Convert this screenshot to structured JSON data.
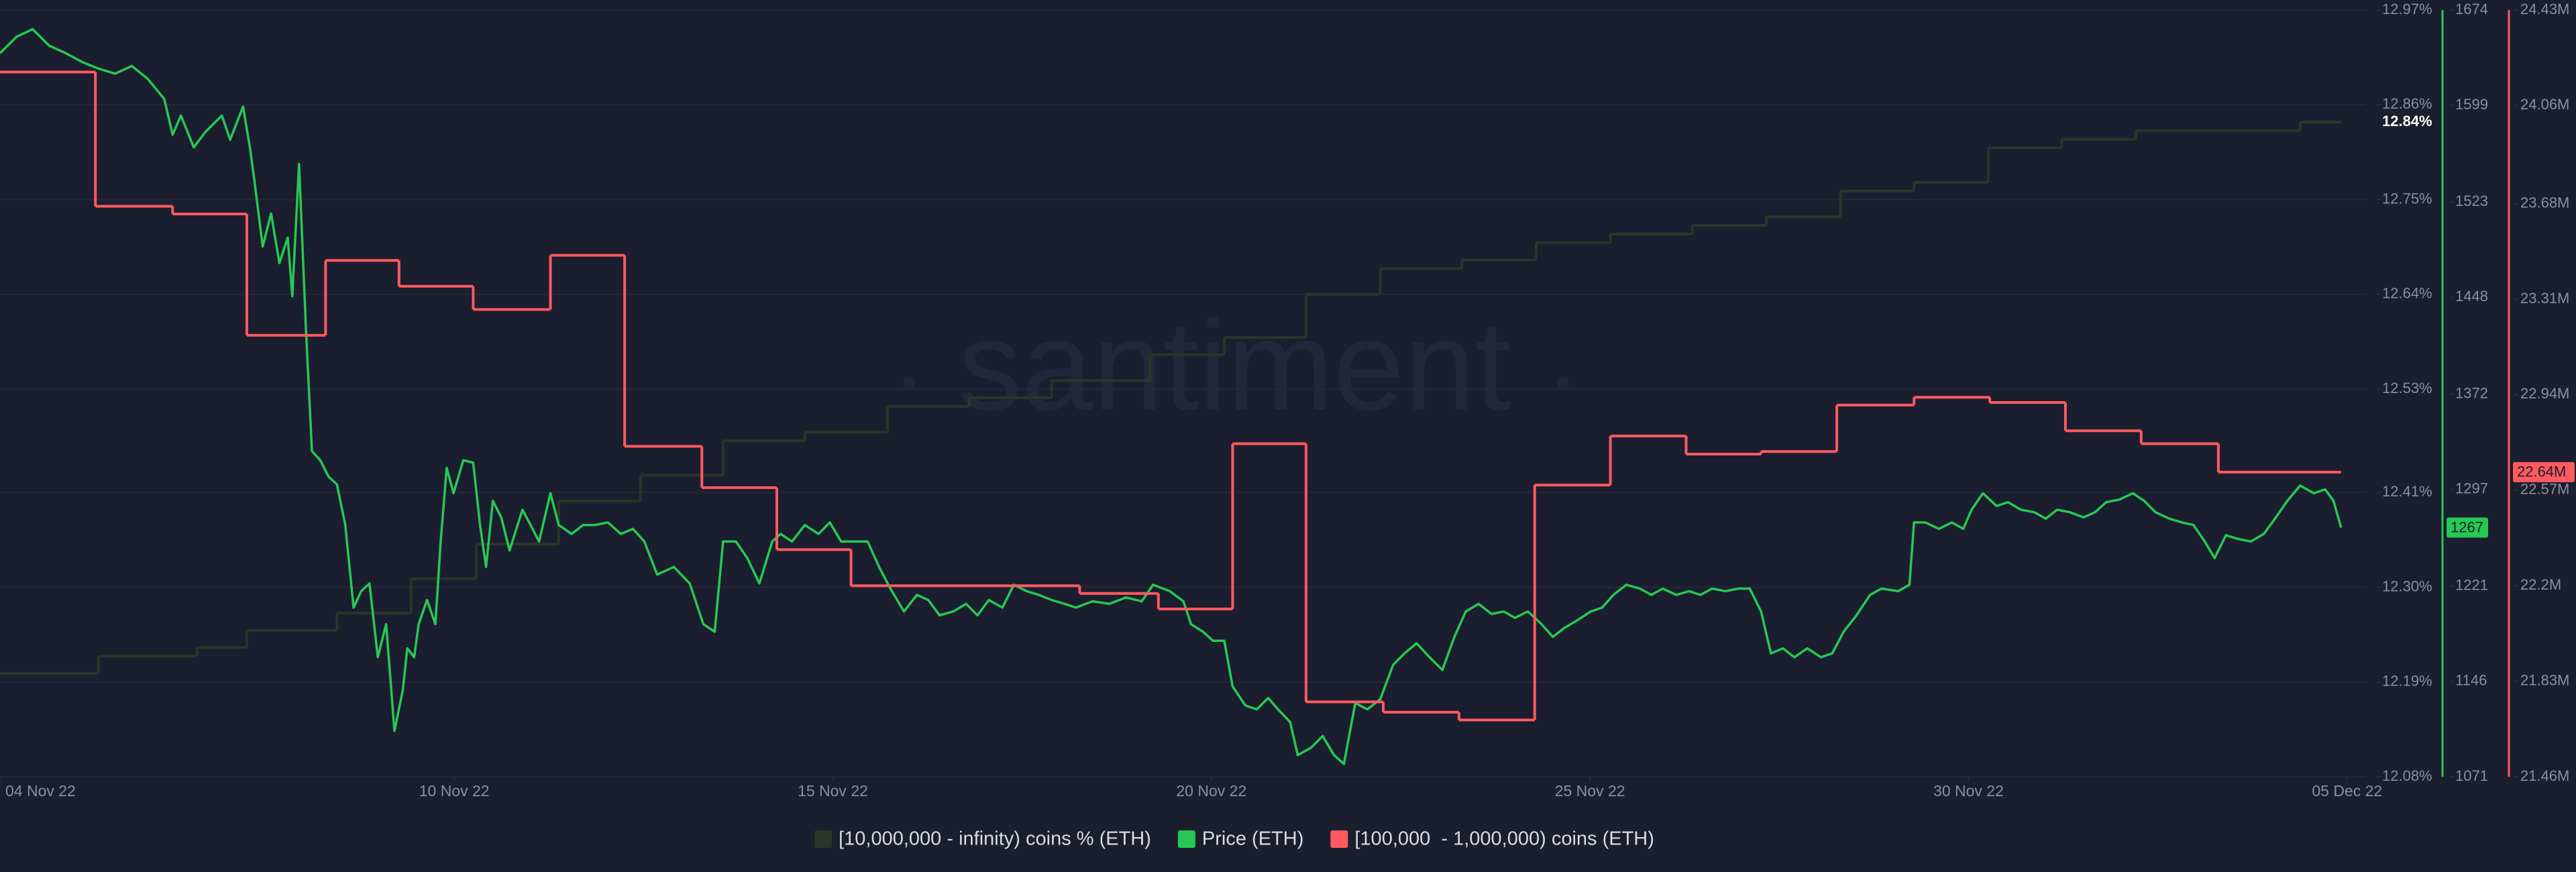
{
  "chart_data": {
    "type": "line",
    "watermark": "santiment",
    "xlim": [
      0,
      31.25
    ],
    "xticks": [
      {
        "value": 0,
        "label": "04 Nov 22"
      },
      {
        "value": 6,
        "label": "10 Nov 22"
      },
      {
        "value": 11,
        "label": "15 Nov 22"
      },
      {
        "value": 16,
        "label": "20 Nov 22"
      },
      {
        "value": 21,
        "label": "25 Nov 22"
      },
      {
        "value": 26,
        "label": "30 Nov 22"
      },
      {
        "value": 31,
        "label": "05 Dec 22"
      }
    ],
    "ylim": [
      12.08,
      12.97
    ],
    "yticks": [
      {
        "value": 12.08,
        "label": "12.08%"
      },
      {
        "value": 12.19,
        "label": "12.19%"
      },
      {
        "value": 12.3,
        "label": "12.30%"
      },
      {
        "value": 12.41,
        "label": "12.41%"
      },
      {
        "value": 12.53,
        "label": "12.53%"
      },
      {
        "value": 12.64,
        "label": "12.64%"
      },
      {
        "value": 12.75,
        "label": "12.75%"
      },
      {
        "value": 12.86,
        "label": "12.86%"
      },
      {
        "value": 12.97,
        "label": "12.97%"
      }
    ],
    "y2lim": [
      1071,
      1674
    ],
    "y2ticks": [
      1071,
      1146,
      1221,
      1297,
      1372,
      1448,
      1523,
      1599,
      1674
    ],
    "y3lim": [
      21460000,
      24430000
    ],
    "y3ticks": [
      {
        "value": 21460000,
        "label": "21.46M"
      },
      {
        "value": 21830000,
        "label": "21.83M"
      },
      {
        "value": 22200000,
        "label": "22.2M"
      },
      {
        "value": 22570000,
        "label": "22.57M"
      },
      {
        "value": 22940000,
        "label": "22.94M"
      },
      {
        "value": 23310000,
        "label": "23.31M"
      },
      {
        "value": 23680000,
        "label": "23.68M"
      },
      {
        "value": 24060000,
        "label": "24.06M"
      },
      {
        "value": 24430000,
        "label": "24.43M"
      }
    ],
    "grid": true,
    "series": [
      {
        "name": "[10,000,000 - infinity) coins % (ETH)",
        "color": "#2c3529",
        "axis": "y",
        "step": true,
        "current": {
          "value": 12.84,
          "label": "12.84%"
        },
        "x": [
          0,
          1.3,
          2.6,
          3.26,
          4.45,
          5.43,
          6.29,
          7.38,
          8.46,
          9.55,
          10.63,
          11.72,
          12.8,
          13.89,
          15.19,
          16.17,
          17.25,
          18.23,
          19.31,
          20.29,
          21.27,
          22.35,
          23.33,
          24.31,
          25.28,
          26.26,
          27.23,
          28.21,
          29.3,
          30.38,
          30.92
        ],
        "values": [
          12.2,
          12.22,
          12.23,
          12.25,
          12.27,
          12.31,
          12.35,
          12.4,
          12.43,
          12.47,
          12.48,
          12.51,
          12.52,
          12.54,
          12.57,
          12.59,
          12.64,
          12.67,
          12.68,
          12.7,
          12.71,
          12.72,
          12.73,
          12.76,
          12.77,
          12.81,
          12.82,
          12.83,
          12.83,
          12.84,
          12.84
        ]
      },
      {
        "name": "Price (ETH)",
        "color": "#26c953",
        "axis": "y2",
        "step": false,
        "current": 1267,
        "x": [
          0,
          0.22,
          0.43,
          0.65,
          0.87,
          1.09,
          1.3,
          1.52,
          1.74,
          1.95,
          2.17,
          2.28,
          2.39,
          2.56,
          2.71,
          2.93,
          3.04,
          3.21,
          3.3,
          3.36,
          3.47,
          3.58,
          3.69,
          3.8,
          3.86,
          3.95,
          4.04,
          4.12,
          4.23,
          4.34,
          4.45,
          4.56,
          4.67,
          4.77,
          4.88,
          4.99,
          5.1,
          5.21,
          5.32,
          5.38,
          5.47,
          5.53,
          5.64,
          5.75,
          5.82,
          5.9,
          5.99,
          6.12,
          6.25,
          6.34,
          6.42,
          6.51,
          6.62,
          6.73,
          6.9,
          6.99,
          7.12,
          7.27,
          7.38,
          7.55,
          7.7,
          7.86,
          8.03,
          8.2,
          8.36,
          8.51,
          8.68,
          8.9,
          9.11,
          9.29,
          9.44,
          9.55,
          9.72,
          9.87,
          10.03,
          10.2,
          10.31,
          10.46,
          10.63,
          10.81,
          10.96,
          11.11,
          11.28,
          11.46,
          11.61,
          11.76,
          11.94,
          12.11,
          12.26,
          12.41,
          12.59,
          12.76,
          12.91,
          13.06,
          13.24,
          13.39,
          13.56,
          13.72,
          13.89,
          14.06,
          14.21,
          14.43,
          14.65,
          14.87,
          15.08,
          15.23,
          15.45,
          15.63,
          15.73,
          15.89,
          16.02,
          16.17,
          16.28,
          16.45,
          16.6,
          16.75,
          16.88,
          17.04,
          17.14,
          17.32,
          17.47,
          17.62,
          17.75,
          17.9,
          18.06,
          18.23,
          18.4,
          18.55,
          18.71,
          18.88,
          19.05,
          19.21,
          19.36,
          19.53,
          19.7,
          19.86,
          20.01,
          20.18,
          20.36,
          20.51,
          20.66,
          20.83,
          21.01,
          21.16,
          21.31,
          21.48,
          21.66,
          21.81,
          21.96,
          22.14,
          22.31,
          22.46,
          22.61,
          22.79,
          22.96,
          23.11,
          23.26,
          23.39,
          23.55,
          23.7,
          23.87,
          24.05,
          24.2,
          24.35,
          24.52,
          24.7,
          24.85,
          25.07,
          25.22,
          25.28,
          25.43,
          25.61,
          25.78,
          25.93,
          26.04,
          26.19,
          26.37,
          26.52,
          26.69,
          26.87,
          27.02,
          27.17,
          27.34,
          27.52,
          27.67,
          27.82,
          27.99,
          28.17,
          28.32,
          28.47,
          28.65,
          28.82,
          28.97,
          29.12,
          29.25,
          29.4,
          29.56,
          29.73,
          29.9,
          30.06,
          30.21,
          30.38,
          30.56,
          30.71,
          30.82,
          30.92
        ],
        "values": [
          1640,
          1653,
          1659,
          1646,
          1640,
          1633,
          1628,
          1624,
          1630,
          1620,
          1604,
          1576,
          1591,
          1566,
          1578,
          1591,
          1572,
          1598,
          1566,
          1540,
          1488,
          1514,
          1475,
          1495,
          1449,
          1553,
          1424,
          1327,
          1320,
          1307,
          1301,
          1269,
          1204,
          1217,
          1223,
          1165,
          1191,
          1107,
          1139,
          1172,
          1165,
          1191,
          1210,
          1191,
          1256,
          1314,
          1294,
          1320,
          1318,
          1269,
          1236,
          1288,
          1275,
          1249,
          1281,
          1271,
          1256,
          1294,
          1269,
          1262,
          1269,
          1269,
          1271,
          1262,
          1266,
          1256,
          1230,
          1236,
          1223,
          1191,
          1185,
          1256,
          1256,
          1243,
          1223,
          1256,
          1262,
          1256,
          1269,
          1262,
          1271,
          1256,
          1256,
          1256,
          1236,
          1219,
          1201,
          1214,
          1210,
          1198,
          1201,
          1207,
          1198,
          1210,
          1204,
          1222,
          1217,
          1214,
          1210,
          1207,
          1204,
          1209,
          1207,
          1212,
          1209,
          1222,
          1217,
          1209,
          1191,
          1185,
          1178,
          1178,
          1142,
          1127,
          1124,
          1133,
          1124,
          1114,
          1088,
          1094,
          1103,
          1088,
          1081,
          1129,
          1124,
          1132,
          1159,
          1168,
          1176,
          1165,
          1155,
          1181,
          1201,
          1207,
          1199,
          1201,
          1196,
          1201,
          1191,
          1181,
          1188,
          1194,
          1201,
          1204,
          1214,
          1222,
          1219,
          1214,
          1219,
          1214,
          1217,
          1214,
          1219,
          1217,
          1219,
          1219,
          1201,
          1168,
          1172,
          1165,
          1172,
          1165,
          1168,
          1185,
          1198,
          1214,
          1219,
          1217,
          1222,
          1271,
          1271,
          1266,
          1271,
          1266,
          1281,
          1294,
          1284,
          1287,
          1281,
          1279,
          1274,
          1281,
          1279,
          1275,
          1279,
          1287,
          1289,
          1294,
          1288,
          1279,
          1274,
          1271,
          1269,
          1256,
          1243,
          1261,
          1258,
          1256,
          1262,
          1275,
          1288,
          1300,
          1294,
          1297,
          1288,
          1267
        ]
      },
      {
        "name": "[100,000  - 1,000,000) coins (ETH)",
        "color": "#ff5a5f",
        "axis": "y3",
        "step": true,
        "current": {
          "value": 22640000,
          "label": "22.64M"
        },
        "x": [
          0,
          1.26,
          2.28,
          3.26,
          4.3,
          5.27,
          6.25,
          7.27,
          8.25,
          9.27,
          10.26,
          11.24,
          14.26,
          15.3,
          16.28,
          17.25,
          18.27,
          19.27,
          20.27,
          21.27,
          22.27,
          23.26,
          24.26,
          25.28,
          26.28,
          27.28,
          28.28,
          29.3,
          30.92
        ],
        "values": [
          24190000,
          23670000,
          23640000,
          23170000,
          23460000,
          23360000,
          23270000,
          23480000,
          22740000,
          22580000,
          22340000,
          22200000,
          22170000,
          22110000,
          22750000,
          21750000,
          21710000,
          21680000,
          22590000,
          22780000,
          22710000,
          22720000,
          22900000,
          22930000,
          22910000,
          22800000,
          22750000,
          22640000,
          22640000
        ]
      }
    ]
  }
}
